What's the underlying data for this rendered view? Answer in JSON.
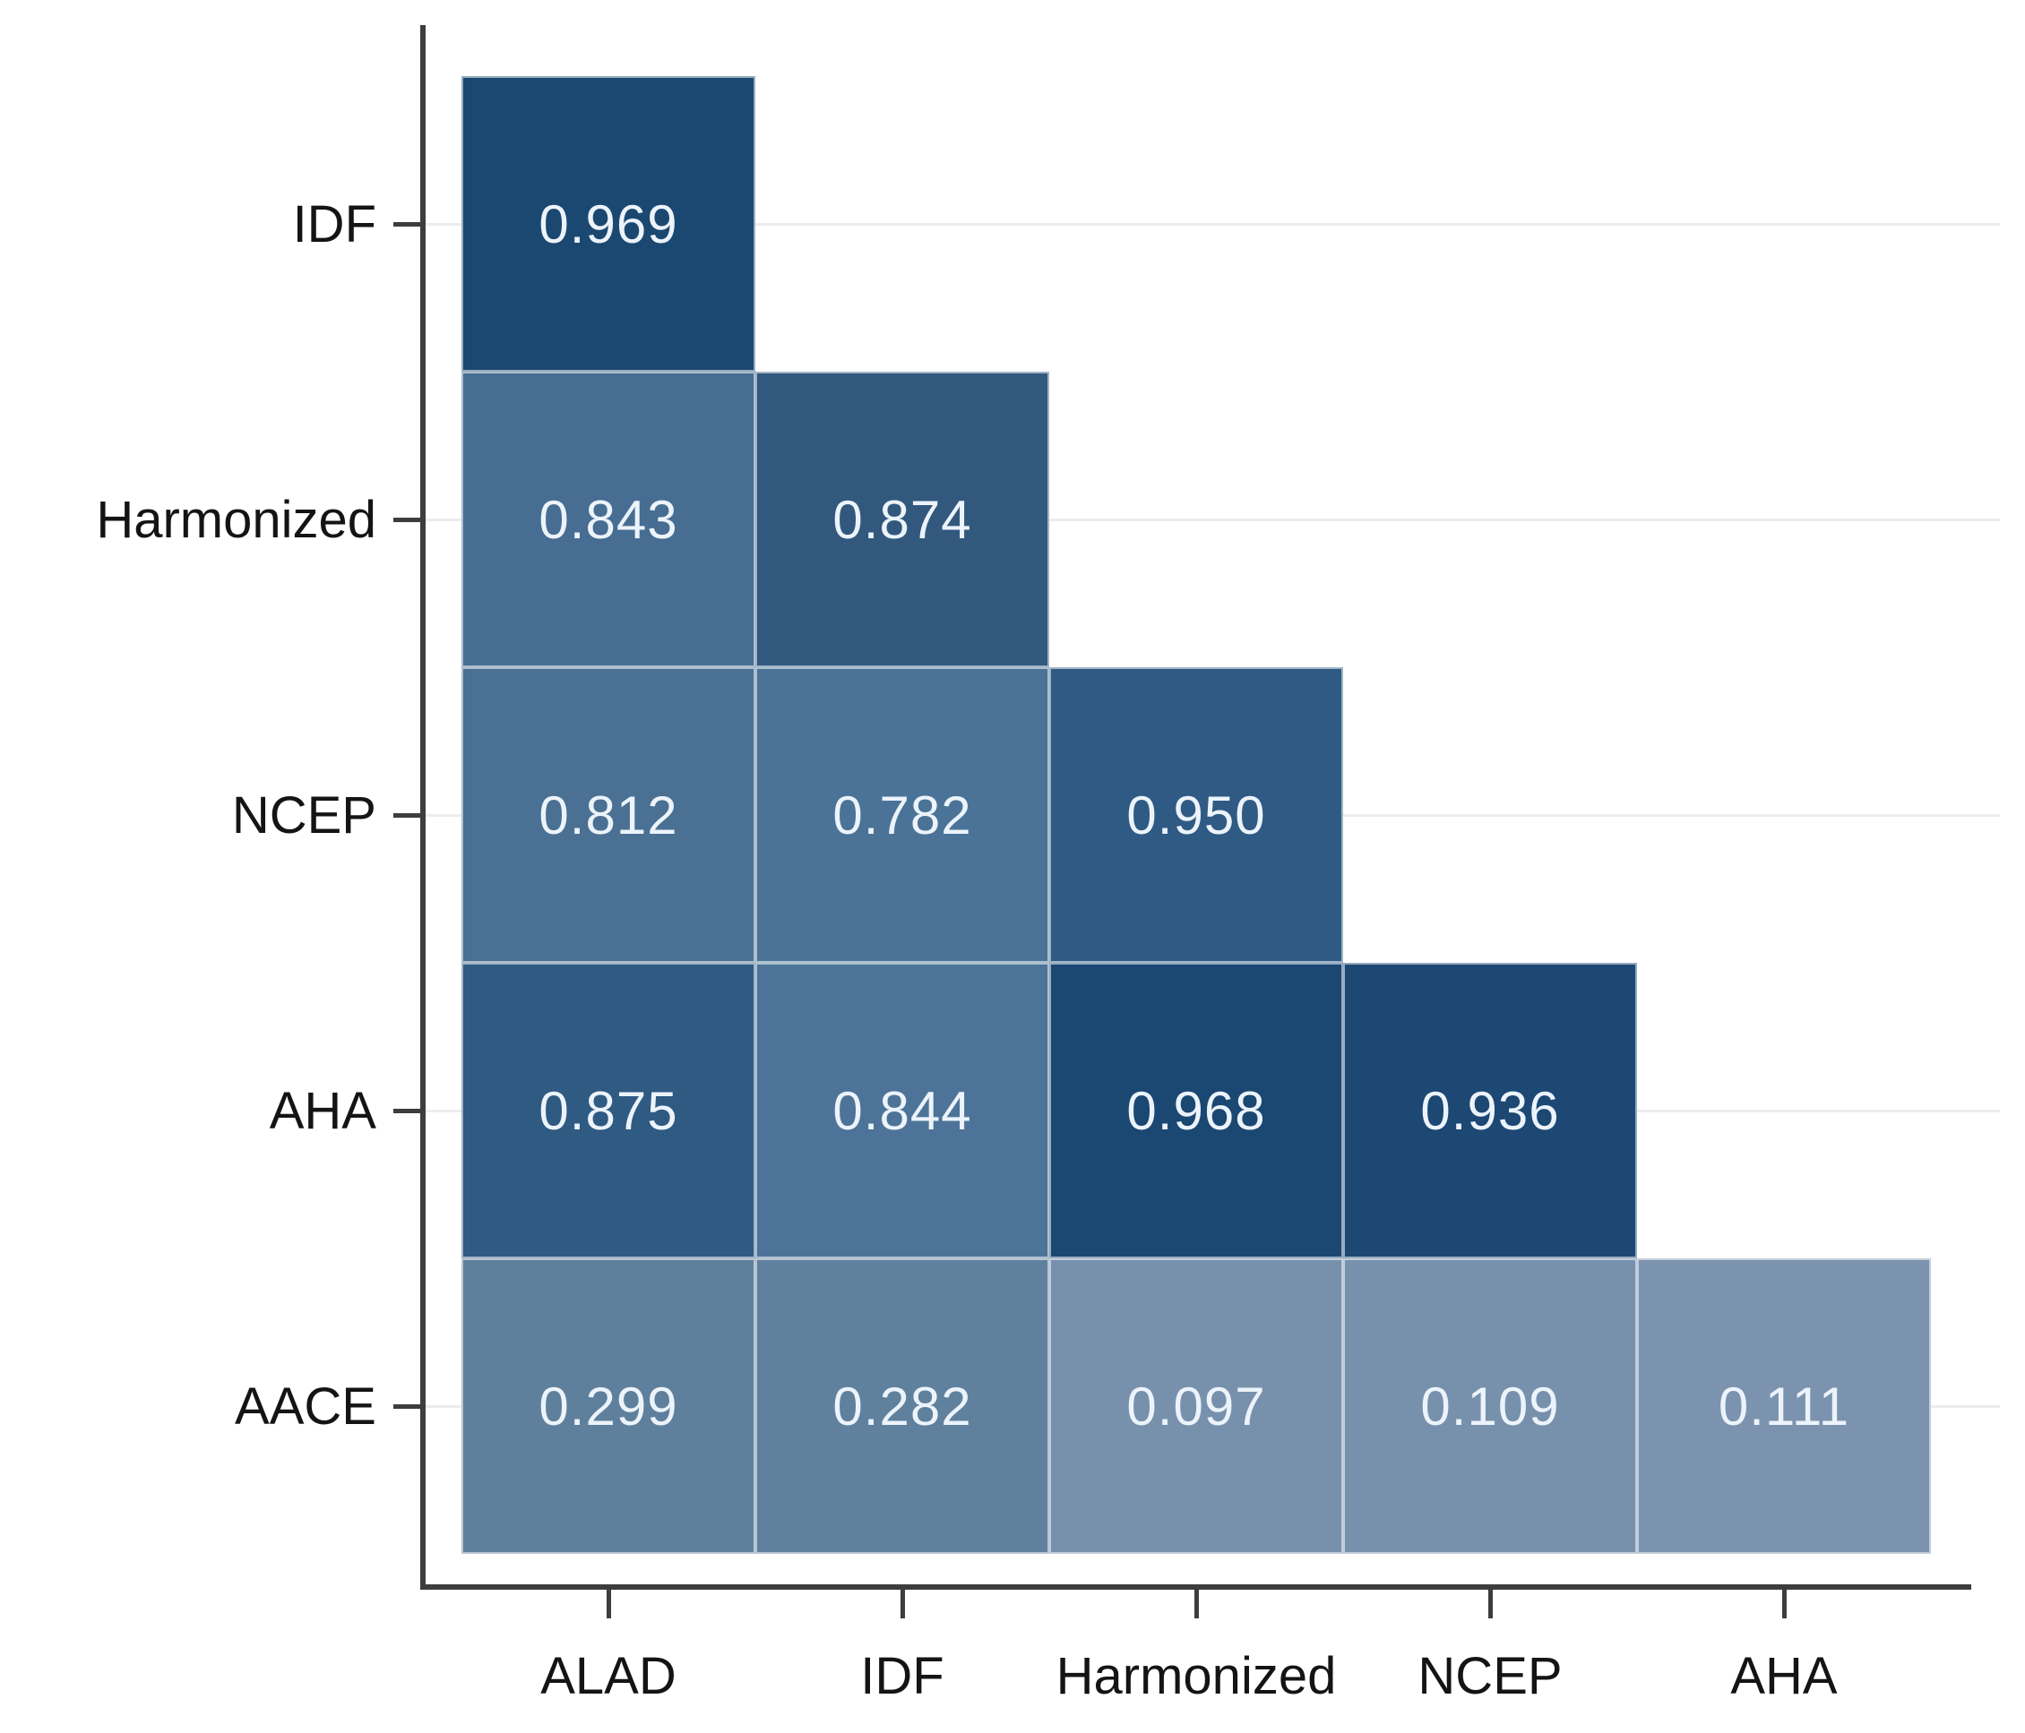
{
  "figure": {
    "background": "#ffffff",
    "axis_color": "#3d3d3d",
    "gridline_color": "#ececec",
    "cell_border_color": "rgba(255,255,255,0.55)",
    "value_text_color": "#ecf3fa"
  },
  "chart_data": {
    "type": "heatmap",
    "title": "",
    "xlabel": "",
    "ylabel": "",
    "legend_position": "none",
    "shape": "lower-triangular agreement matrix",
    "grid": "faint horizontal gridlines at each row center",
    "x_categories": [
      "ALAD",
      "IDF",
      "Harmonized",
      "NCEP",
      "AHA"
    ],
    "y_categories": [
      "IDF",
      "Harmonized",
      "NCEP",
      "AHA",
      "AACE"
    ],
    "cells": [
      {
        "row": "IDF",
        "col": "ALAD",
        "value": "0.969",
        "color": "#1b4871"
      },
      {
        "row": "Harmonized",
        "col": "ALAD",
        "value": "0.843",
        "color": "#476d92"
      },
      {
        "row": "Harmonized",
        "col": "IDF",
        "value": "0.874",
        "color": "#32587e"
      },
      {
        "row": "NCEP",
        "col": "ALAD",
        "value": "0.812",
        "color": "#4a7093"
      },
      {
        "row": "NCEP",
        "col": "IDF",
        "value": "0.782",
        "color": "#4a7397"
      },
      {
        "row": "NCEP",
        "col": "Harmonized",
        "value": "0.950",
        "color": "#2f5a84"
      },
      {
        "row": "AHA",
        "col": "ALAD",
        "value": "0.875",
        "color": "#2f5a82"
      },
      {
        "row": "AHA",
        "col": "IDF",
        "value": "0.844",
        "color": "#4d7498"
      },
      {
        "row": "AHA",
        "col": "Harmonized",
        "value": "0.968",
        "color": "#1b4773"
      },
      {
        "row": "AHA",
        "col": "NCEP",
        "value": "0.936",
        "color": "#1c4873"
      },
      {
        "row": "AACE",
        "col": "ALAD",
        "value": "0.299",
        "color": "#5f809c"
      },
      {
        "row": "AACE",
        "col": "IDF",
        "value": "0.282",
        "color": "#5f819e"
      },
      {
        "row": "AACE",
        "col": "Harmonized",
        "value": "0.097",
        "color": "#7791ad"
      },
      {
        "row": "AACE",
        "col": "NCEP",
        "value": "0.109",
        "color": "#7791ad"
      },
      {
        "row": "AACE",
        "col": "AHA",
        "value": "0.111",
        "color": "#7b93ae"
      }
    ]
  }
}
